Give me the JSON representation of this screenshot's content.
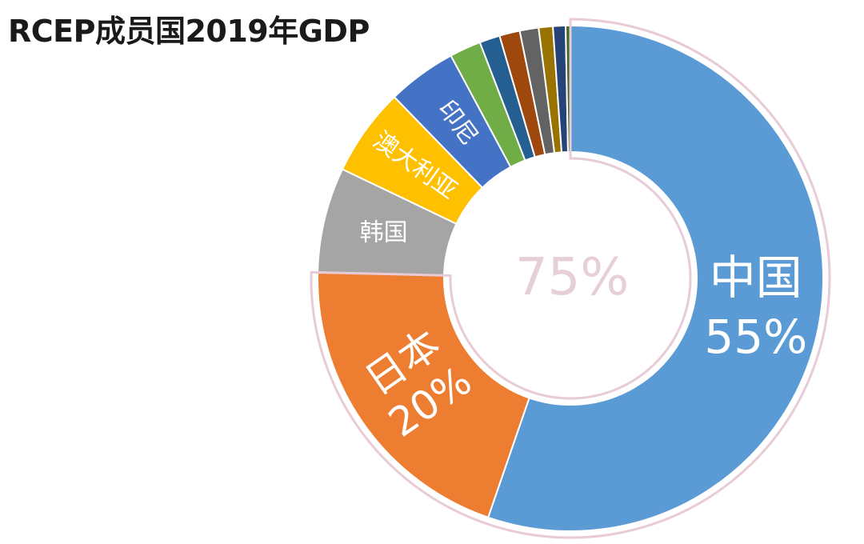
{
  "chart_data": {
    "type": "pie",
    "title": "RCEP成员国2019年GDP",
    "center_label": "75%",
    "slices": [
      {
        "label": "中国",
        "value_label": "55%",
        "value": 55,
        "color": "#5b9bd5"
      },
      {
        "label": "日本",
        "value_label": "20%",
        "value": 20,
        "color": "#ed7d31"
      },
      {
        "label": "韩国",
        "value_label": "",
        "value": 6.7,
        "color": "#a5a5a5"
      },
      {
        "label": "澳大利亚",
        "value_label": "",
        "value": 5.6,
        "color": "#ffc000"
      },
      {
        "label": "印尼",
        "value_label": "",
        "value": 4.4,
        "color": "#4472c4"
      },
      {
        "label": "",
        "value_label": "",
        "value": 2.0,
        "color": "#70ad47"
      },
      {
        "label": "",
        "value_label": "",
        "value": 1.3,
        "color": "#255e91"
      },
      {
        "label": "",
        "value_label": "",
        "value": 1.3,
        "color": "#9e480e"
      },
      {
        "label": "",
        "value_label": "",
        "value": 1.2,
        "color": "#636363"
      },
      {
        "label": "",
        "value_label": "",
        "value": 0.9,
        "color": "#997300"
      },
      {
        "label": "",
        "value_label": "",
        "value": 0.8,
        "color": "#264478"
      },
      {
        "label": "",
        "value_label": "",
        "value": 0.3,
        "color": "#43682b"
      }
    ],
    "highlight_outline_color": "#e9cbd5"
  }
}
